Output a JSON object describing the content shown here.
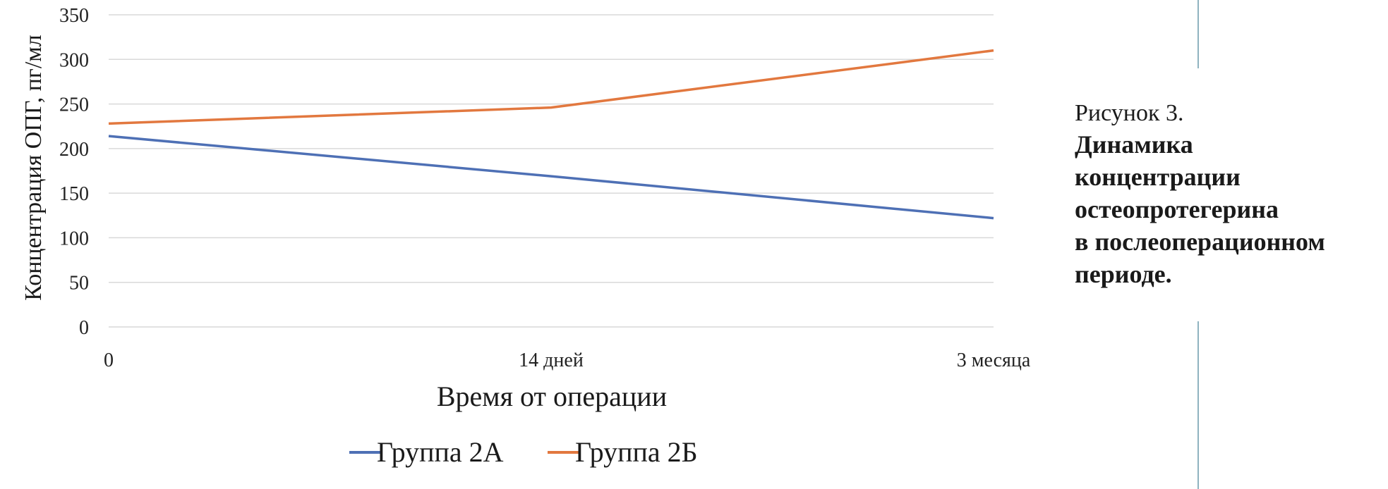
{
  "chart_data": {
    "type": "line",
    "categories": [
      "0",
      "14 дней",
      "3 месяца"
    ],
    "series": [
      {
        "name": "Группа 2А",
        "color": "#4e70b5",
        "values": [
          214,
          169,
          122
        ]
      },
      {
        "name": "Группа 2Б",
        "color": "#e2783f",
        "values": [
          228,
          246,
          310
        ]
      }
    ],
    "xlabel": "Время от операции",
    "ylabel": "Концентрация ОПГ, пг/мл",
    "ylim": [
      0,
      350
    ],
    "yticks": [
      "0",
      "50",
      "100",
      "150",
      "200",
      "250",
      "300",
      "350"
    ],
    "grid": true,
    "legend": "bottom",
    "gridline_color": "#d9d9d9"
  },
  "caption": {
    "label": "Рисунок 3.",
    "title_lines": [
      "Динамика",
      "концентрации",
      "остеопротегерина",
      "в послеоперационном",
      "периоде."
    ]
  },
  "divider_color": "#8fb3c0"
}
